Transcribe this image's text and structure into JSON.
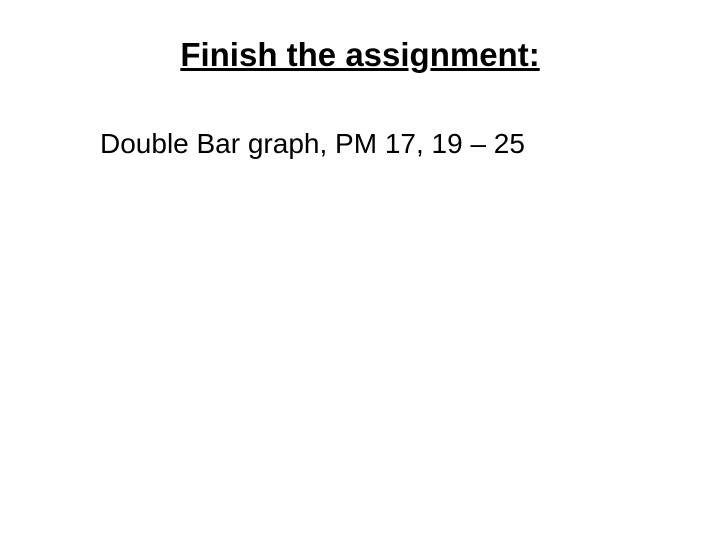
{
  "slide": {
    "title": "Finish the assignment:",
    "body": "Double Bar graph, PM 17, 19 – 25",
    "title_fontsize": 33,
    "title_fontweight": "bold",
    "title_underline": true,
    "body_fontsize": 28,
    "text_color": "#000000",
    "background_color": "#ffffff",
    "font_family": "Arial"
  }
}
